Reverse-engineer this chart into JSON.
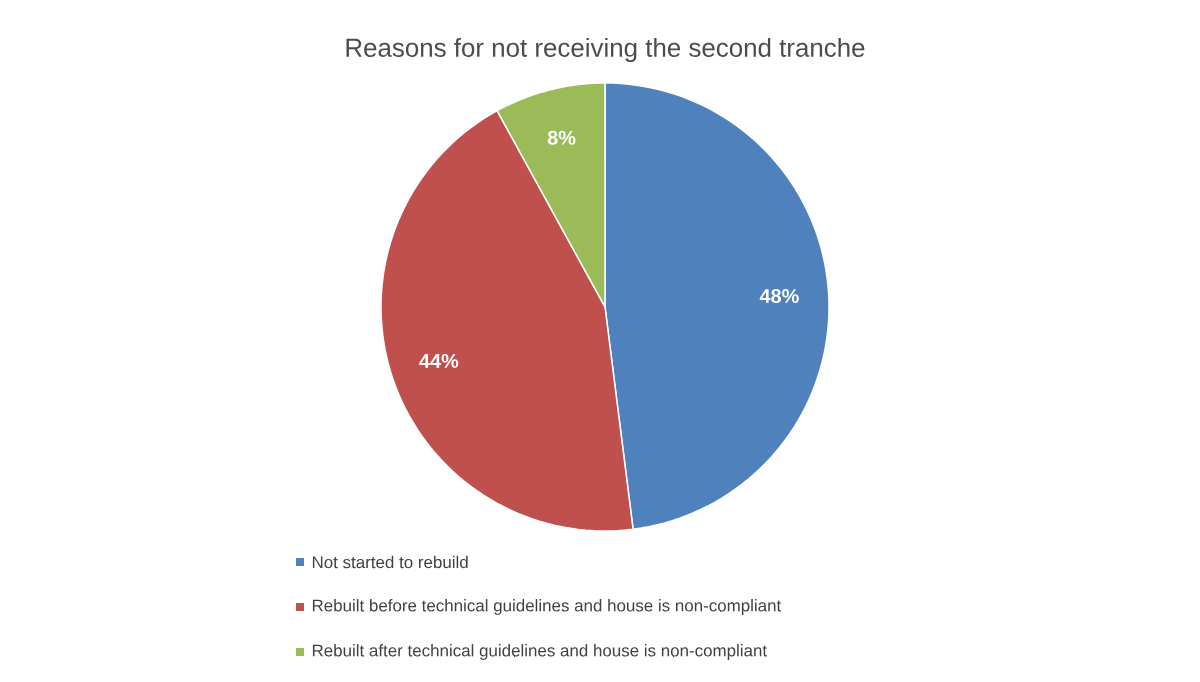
{
  "chart_data": {
    "type": "pie",
    "title": "Reasons for not receiving the second tranche",
    "categories": [
      "Not started to rebuild",
      "Rebuilt before technical guidelines and house is non-compliant",
      "Rebuilt after technical guidelines and house is non-compliant"
    ],
    "values": [
      48,
      44,
      8
    ],
    "colors": [
      "#4f81bd",
      "#c0504d",
      "#9bbb59"
    ],
    "value_labels": [
      "48%",
      "44%",
      "8%"
    ],
    "legend": "bottom"
  }
}
